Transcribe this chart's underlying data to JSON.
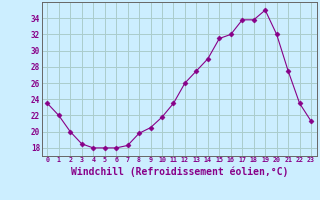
{
  "x": [
    0,
    1,
    2,
    3,
    4,
    5,
    6,
    7,
    8,
    9,
    10,
    11,
    12,
    13,
    14,
    15,
    16,
    17,
    18,
    19,
    20,
    21,
    22,
    23
  ],
  "y": [
    23.5,
    22.0,
    20.0,
    18.5,
    18.0,
    18.0,
    18.0,
    18.3,
    19.8,
    20.5,
    21.8,
    23.5,
    26.0,
    27.5,
    29.0,
    31.5,
    32.0,
    33.8,
    33.8,
    35.0,
    32.0,
    27.5,
    23.5,
    21.3
  ],
  "line_color": "#880088",
  "marker": "D",
  "marker_size": 2.5,
  "bg_color": "#cceeff",
  "grid_color": "#aacccc",
  "xlabel": "Windchill (Refroidissement éolien,°C)",
  "xlabel_fontsize": 7,
  "ylabel_ticks": [
    18,
    20,
    22,
    24,
    26,
    28,
    30,
    32,
    34
  ],
  "xtick_labels": [
    "0",
    "1",
    "2",
    "3",
    "4",
    "5",
    "6",
    "7",
    "8",
    "9",
    "10",
    "11",
    "12",
    "13",
    "14",
    "15",
    "16",
    "17",
    "18",
    "19",
    "20",
    "21",
    "22",
    "23"
  ],
  "ylim": [
    17.0,
    36.0
  ],
  "xlim": [
    -0.5,
    23.5
  ]
}
